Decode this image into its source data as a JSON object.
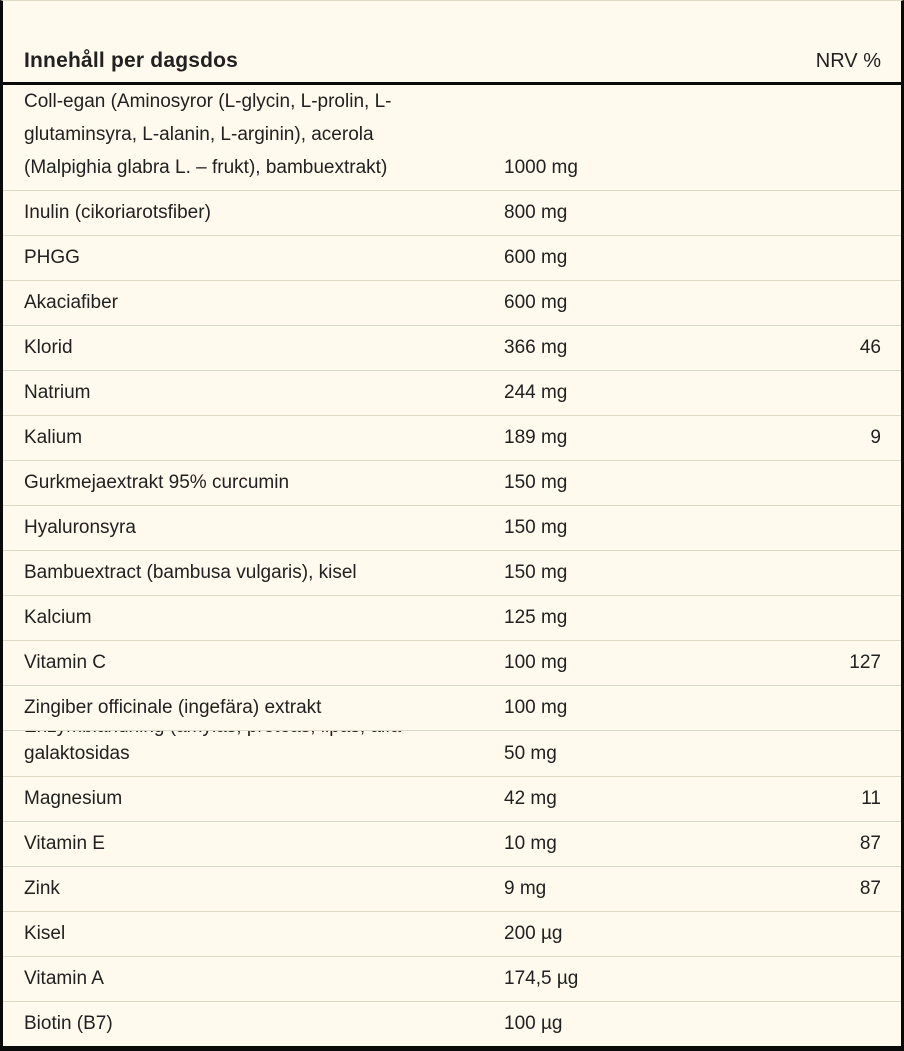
{
  "colors": {
    "background": "#FFFAED",
    "grid_line": "#DDDAC5",
    "heavy_rule": "#0A0A0A",
    "text": "#212121"
  },
  "table": {
    "header": {
      "name_column": "Innehåll per dagsdos",
      "amount_column": "",
      "nrv_column": "NRV %"
    },
    "rows": [
      {
        "name": "Coll-egan (Aminosyror (L-glycin, L-prolin, L-\nglutaminsyra, L-alanin, L-arginin), acerola\n(Malpighia glabra L. – frukt), bambuextrakt)",
        "amount": "1000 mg",
        "nrv": "",
        "tall": true
      },
      {
        "name": "Inulin (cikoriarotsfiber)",
        "amount": "800 mg",
        "nrv": ""
      },
      {
        "name": "PHGG",
        "amount": "600 mg",
        "nrv": ""
      },
      {
        "name": "Akaciafiber",
        "amount": "600 mg",
        "nrv": ""
      },
      {
        "name": "Klorid",
        "amount": "366 mg",
        "nrv": "46"
      },
      {
        "name": "Natrium",
        "amount": "244 mg",
        "nrv": ""
      },
      {
        "name": "Kalium",
        "amount": "189 mg",
        "nrv": "9"
      },
      {
        "name": "Gurkmejaextrakt 95% curcumin",
        "amount": "150 mg",
        "nrv": ""
      },
      {
        "name": "Hyaluronsyra",
        "amount": "150 mg",
        "nrv": ""
      },
      {
        "name": "Bambuextract (bambusa vulgaris), kisel",
        "amount": "150 mg",
        "nrv": ""
      },
      {
        "name": "Kalcium",
        "amount": "125 mg",
        "nrv": ""
      },
      {
        "name": "Vitamin C",
        "amount": "100 mg",
        "nrv": "127"
      },
      {
        "name": "Zingiber officinale (ingefära) extrakt",
        "amount": "100 mg",
        "nrv": ""
      },
      {
        "name": "galaktosidas",
        "clipped_prefix": "Enzymblandning (amylas, proteas, lipas, alfa-",
        "amount": "50 mg",
        "nrv": ""
      },
      {
        "name": "Magnesium",
        "amount": "42 mg",
        "nrv": "11"
      },
      {
        "name": "Vitamin E",
        "amount": "10 mg",
        "nrv": "87"
      },
      {
        "name": "Zink",
        "amount": "9 mg",
        "nrv": "87"
      },
      {
        "name": "Kisel",
        "amount": "200 µg",
        "nrv": ""
      },
      {
        "name": "Vitamin A",
        "amount": "174,5 µg",
        "nrv": ""
      },
      {
        "name": "Biotin (B7)",
        "amount": "100 µg",
        "nrv": ""
      }
    ]
  }
}
